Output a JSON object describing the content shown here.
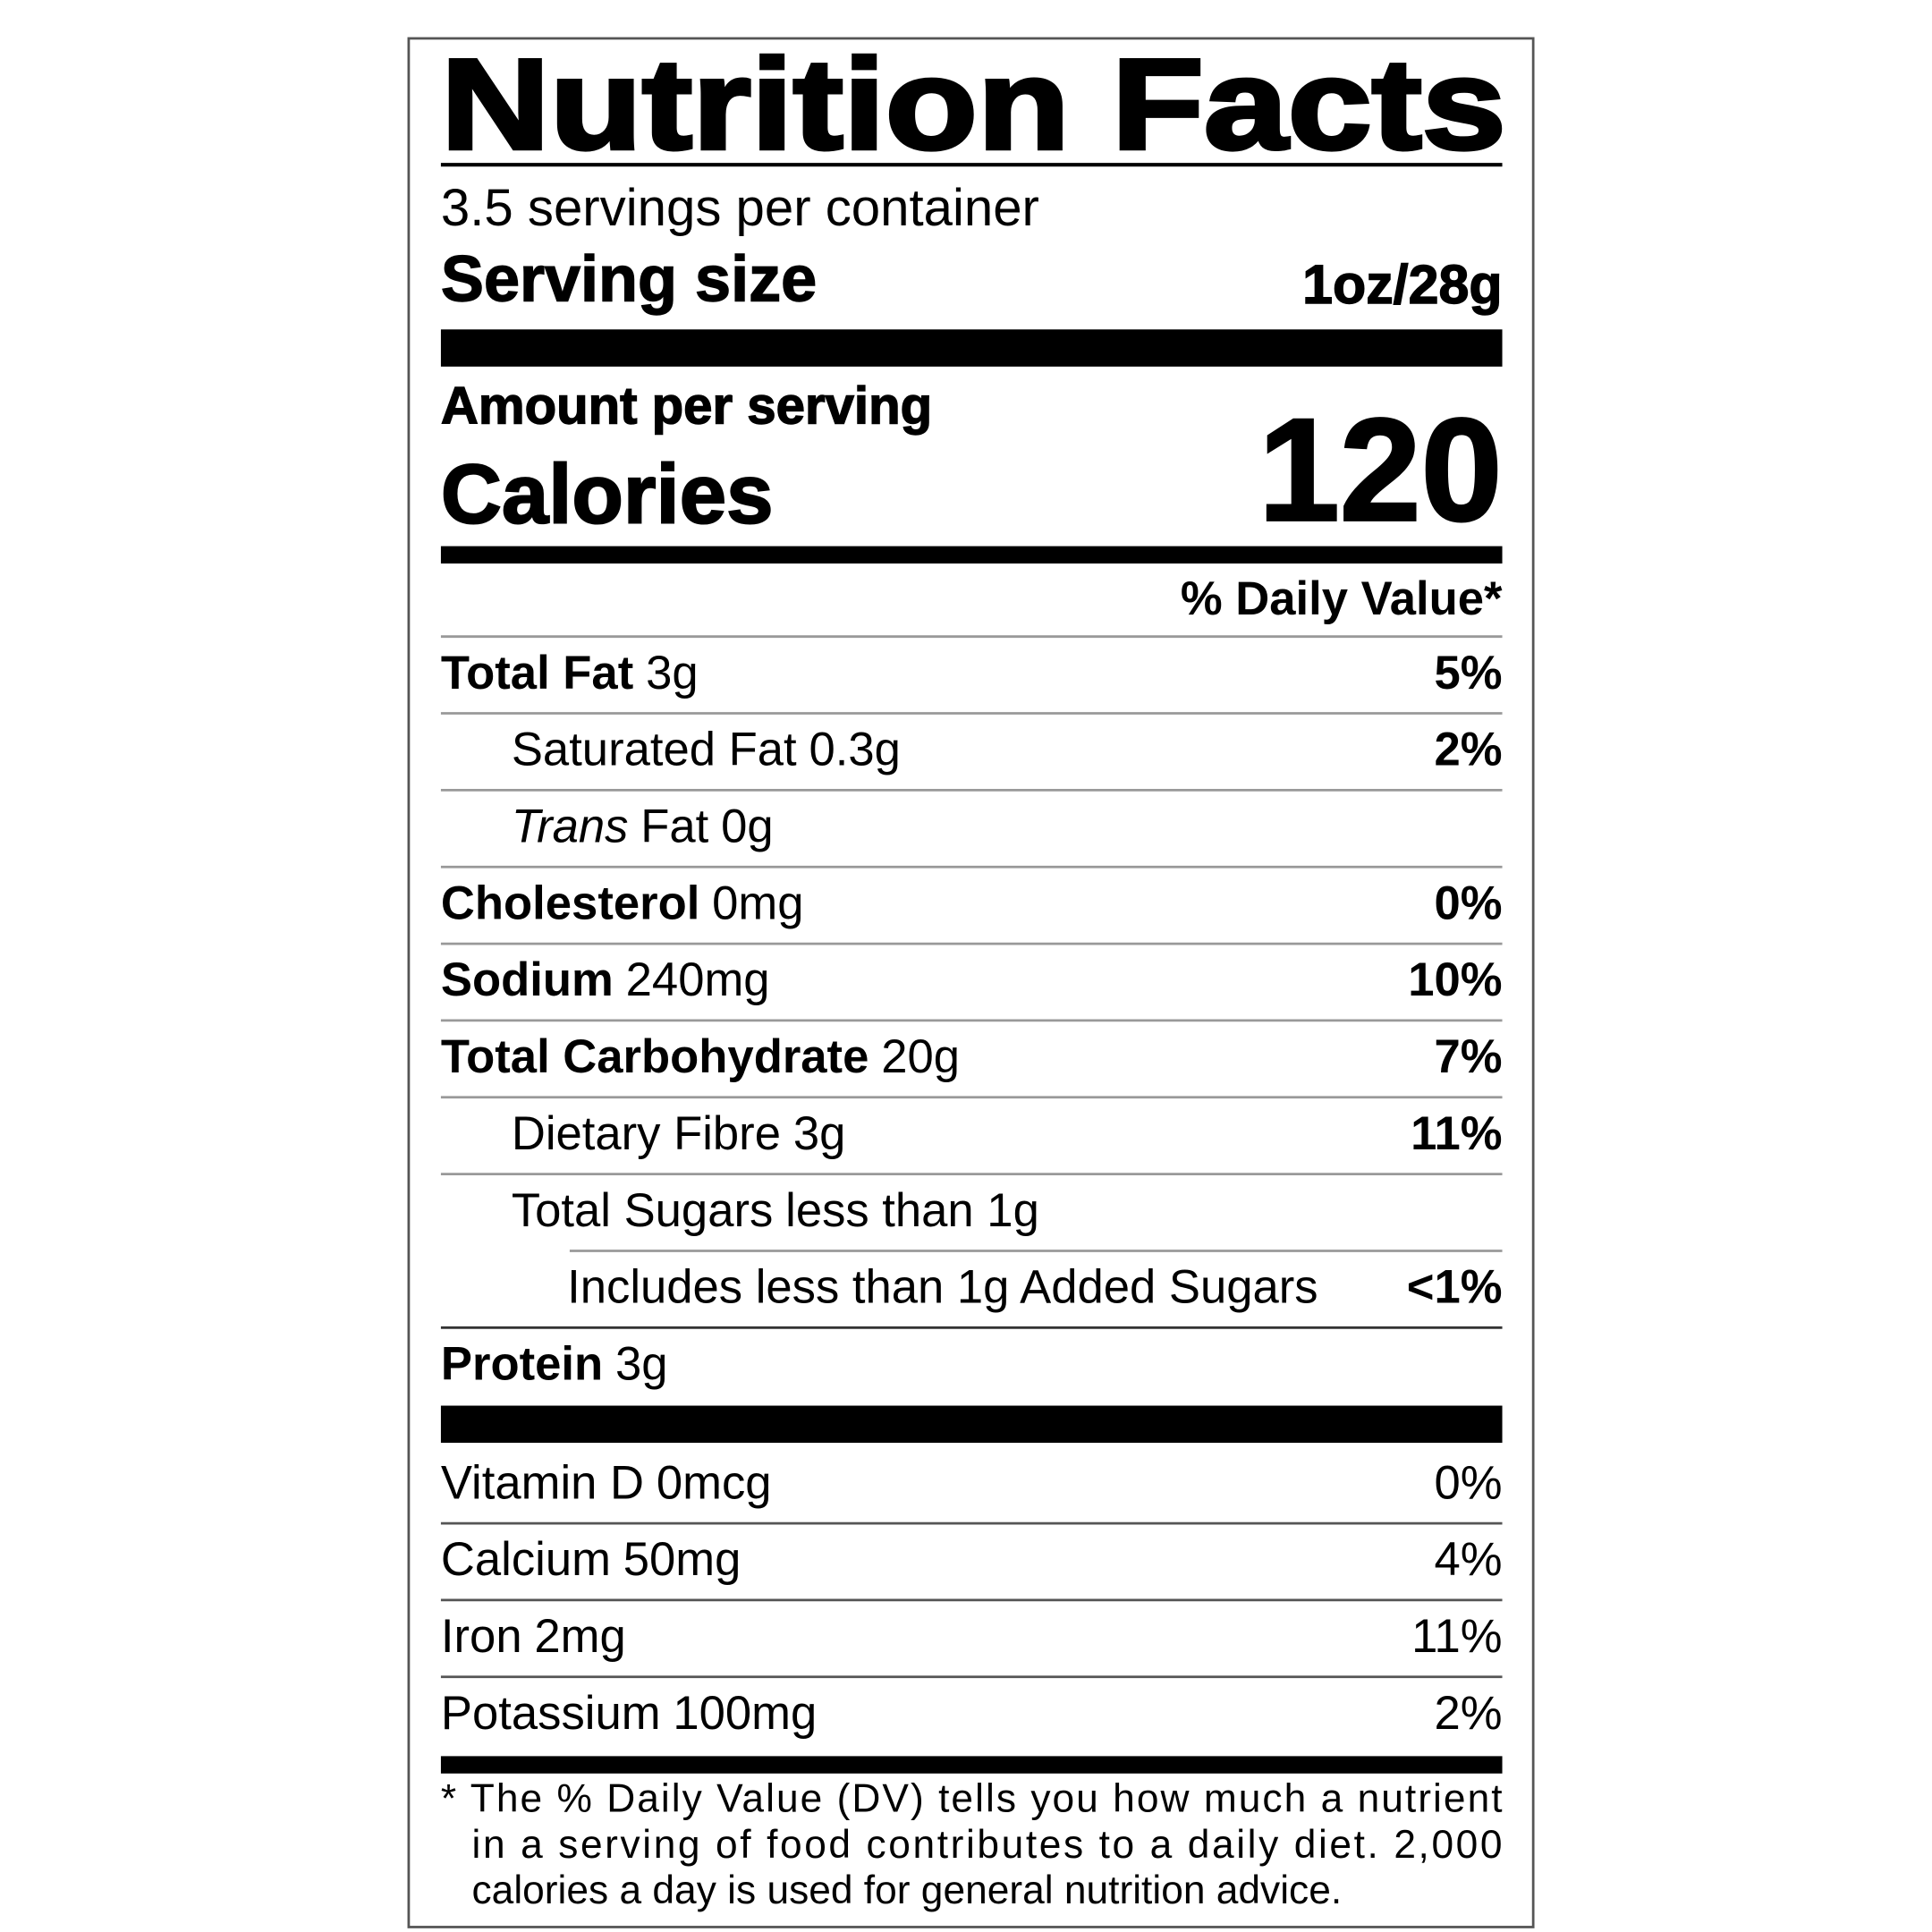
{
  "header": {
    "title": "Nutrition Facts",
    "servings": "3.5 servings per container",
    "serving_size_label": "Serving size",
    "serving_size": "1oz/28g"
  },
  "calories": {
    "amount_label": "Amount per serving",
    "label": "Calories",
    "value": "120"
  },
  "daily_value_heading": "% Daily Value*",
  "nutrients": [
    {
      "name": "Total Fat",
      "amount": "3g",
      "dv": "5%"
    },
    {
      "name": "Saturated Fat",
      "amount": "0.3g",
      "dv": "2%"
    },
    {
      "prefix": "Trans",
      "name": "Fat",
      "amount": "0g"
    },
    {
      "name": "Cholesterol",
      "amount": "0mg",
      "dv": "0%"
    },
    {
      "name": "Sodium",
      "amount": "240mg",
      "dv": "10%"
    },
    {
      "name": "Total Carbohydrate",
      "amount": "20g",
      "dv": "7%"
    },
    {
      "name": "Dietary Fibre",
      "amount": "3g",
      "dv": "11%"
    },
    {
      "name": "Total Sugars",
      "amount": "less than 1g"
    },
    {
      "name": "Includes less than 1g Added Sugars",
      "dv": "<1%"
    },
    {
      "name": "Protein",
      "amount": "3g"
    }
  ],
  "vitamins": [
    {
      "name": "Vitamin D",
      "amount": "0mcg",
      "dv": "0%"
    },
    {
      "name": "Calcium",
      "amount": "50mg",
      "dv": "4%"
    },
    {
      "name": "Iron",
      "amount": "2mg",
      "dv": "11%"
    },
    {
      "name": "Potassium",
      "amount": "100mg",
      "dv": "2%"
    }
  ],
  "footnote": [
    "* The % Daily Value (DV) tells you how much a nutrient",
    "in a serving of food contributes to a daily diet. 2,000",
    "calories a day is used for general  nutrition  advice."
  ]
}
